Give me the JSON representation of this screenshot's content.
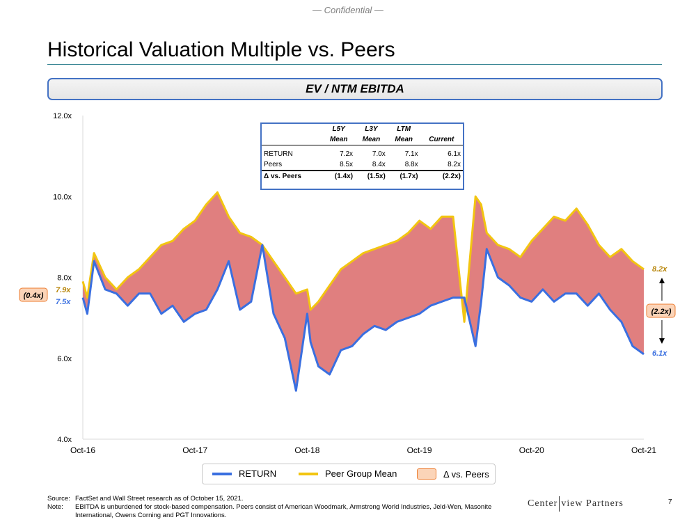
{
  "header": {
    "confidential": "— Confidential —",
    "title": "Historical Valuation Multiple vs. Peers",
    "banner": "EV / NTM EBITDA"
  },
  "stats_table": {
    "col_top": [
      "L5Y",
      "L3Y",
      "LTM",
      ""
    ],
    "col_bottom": [
      "Mean",
      "Mean",
      "Mean",
      "Current"
    ],
    "rows": [
      {
        "label": "RETURN",
        "values": [
          "7.2x",
          "7.0x",
          "7.1x",
          "6.1x"
        ]
      },
      {
        "label": "Peers",
        "values": [
          "8.5x",
          "8.4x",
          "8.8x",
          "8.2x"
        ]
      },
      {
        "label": "Δ vs. Peers",
        "values": [
          "(1.4x)",
          "(1.5x)",
          "(1.7x)",
          "(2.2x)"
        ]
      }
    ]
  },
  "annotations": {
    "start_delta": "(0.4x)",
    "start_peer": "7.9x",
    "start_return": "7.5x",
    "end_peer": "8.2x",
    "end_delta": "(2.2x)",
    "end_return": "6.1x"
  },
  "legend": {
    "return": "RETURN",
    "peer": "Peer Group Mean",
    "delta": "Δ vs. Peers"
  },
  "footer": {
    "source_label": "Source:",
    "source_text": "FactSet and Wall Street research as of October 15, 2021.",
    "note_label": "Note:",
    "note_text": "EBITDA is unburdened for stock-based compensation. Peers consist of American Woodmark, Armstrong World Industries, Jeld-Wen, Masonite International, Owens Corning and PGT Innovations."
  },
  "logo": {
    "left": "Center",
    "right": "view Partners"
  },
  "page_number": "7",
  "colors": {
    "return": "#3a6fe0",
    "peer": "#f2c511",
    "fill": "#e07f7f",
    "delta_box_fill": "#fbd4b8",
    "delta_box_border": "#ed7d31"
  },
  "chart_data": {
    "type": "line",
    "title": "EV / NTM EBITDA",
    "ylim": [
      4.0,
      12.0
    ],
    "y_ticks": [
      "4.0x",
      "6.0x",
      "8.0x",
      "10.0x",
      "12.0x"
    ],
    "x_ticks": [
      "Oct-16",
      "Oct-17",
      "Oct-18",
      "Oct-19",
      "Oct-20",
      "Oct-21"
    ],
    "x_unit": "years since Oct-16",
    "series": [
      {
        "name": "RETURN",
        "x": [
          0,
          0.04,
          0.1,
          0.2,
          0.3,
          0.4,
          0.5,
          0.6,
          0.7,
          0.8,
          0.9,
          1.0,
          1.1,
          1.2,
          1.3,
          1.4,
          1.5,
          1.6,
          1.7,
          1.8,
          1.9,
          2.0,
          2.03,
          2.1,
          2.2,
          2.3,
          2.4,
          2.5,
          2.6,
          2.7,
          2.8,
          2.9,
          3.0,
          3.1,
          3.2,
          3.3,
          3.4,
          3.5,
          3.55,
          3.6,
          3.7,
          3.8,
          3.9,
          4.0,
          4.1,
          4.2,
          4.3,
          4.4,
          4.5,
          4.6,
          4.7,
          4.8,
          4.9,
          5.0
        ],
        "values": [
          7.5,
          7.1,
          8.4,
          7.7,
          7.6,
          7.3,
          7.6,
          7.6,
          7.1,
          7.3,
          6.9,
          7.1,
          7.2,
          7.7,
          8.4,
          7.2,
          7.4,
          8.8,
          7.1,
          6.5,
          5.2,
          7.1,
          6.4,
          5.8,
          5.6,
          6.2,
          6.3,
          6.6,
          6.8,
          6.7,
          6.9,
          7.0,
          7.1,
          7.3,
          7.4,
          7.5,
          7.5,
          6.3,
          7.4,
          8.7,
          8.0,
          7.8,
          7.5,
          7.4,
          7.7,
          7.4,
          7.6,
          7.6,
          7.3,
          7.6,
          7.2,
          6.9,
          6.3,
          6.1
        ]
      },
      {
        "name": "Peer Group Mean",
        "x": [
          0,
          0.04,
          0.1,
          0.2,
          0.3,
          0.4,
          0.5,
          0.6,
          0.7,
          0.8,
          0.9,
          1.0,
          1.1,
          1.2,
          1.3,
          1.4,
          1.5,
          1.6,
          1.7,
          1.8,
          1.9,
          2.0,
          2.03,
          2.1,
          2.2,
          2.3,
          2.4,
          2.5,
          2.6,
          2.7,
          2.8,
          2.9,
          3.0,
          3.1,
          3.2,
          3.3,
          3.4,
          3.5,
          3.55,
          3.6,
          3.7,
          3.8,
          3.9,
          4.0,
          4.1,
          4.2,
          4.3,
          4.4,
          4.5,
          4.6,
          4.7,
          4.8,
          4.9,
          5.0
        ],
        "values": [
          7.9,
          7.5,
          8.6,
          8.0,
          7.7,
          8.0,
          8.2,
          8.5,
          8.8,
          8.9,
          9.2,
          9.4,
          9.8,
          10.1,
          9.5,
          9.1,
          9.0,
          8.8,
          8.4,
          8.0,
          7.6,
          7.7,
          7.2,
          7.4,
          7.8,
          8.2,
          8.4,
          8.6,
          8.7,
          8.8,
          8.9,
          9.1,
          9.4,
          9.2,
          9.5,
          9.5,
          6.9,
          10.0,
          9.8,
          9.1,
          8.8,
          8.7,
          8.5,
          8.9,
          9.2,
          9.5,
          9.4,
          9.7,
          9.3,
          8.8,
          8.5,
          8.7,
          8.4,
          8.2
        ]
      }
    ],
    "fill_between": "Δ vs. Peers"
  }
}
